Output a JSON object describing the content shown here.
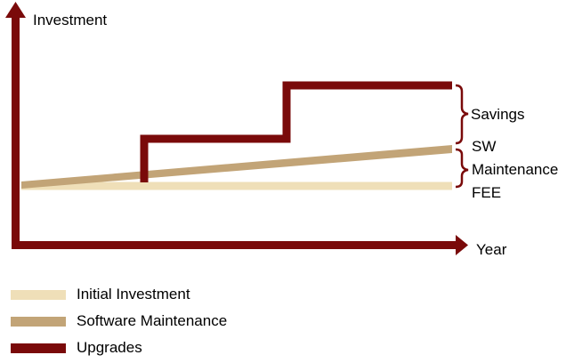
{
  "colors": {
    "axis": "#7a0a0a",
    "initial_investment": "#efdfb8",
    "software_maintenance": "#c2a477",
    "upgrades": "#7a0a0a",
    "annotation": "#7a0a0a",
    "text": "#000000"
  },
  "axes": {
    "y_label": "Investment",
    "x_label": "Year"
  },
  "annotations": {
    "savings": "Savings",
    "sw_fee_lines": [
      "SW",
      "Maintenance",
      "FEE"
    ]
  },
  "legend": [
    {
      "label": "Initial Investment",
      "series": "initial_investment"
    },
    {
      "label": "Software Maintenance",
      "series": "software_maintenance"
    },
    {
      "label": "Upgrades",
      "series": "upgrades"
    }
  ]
}
